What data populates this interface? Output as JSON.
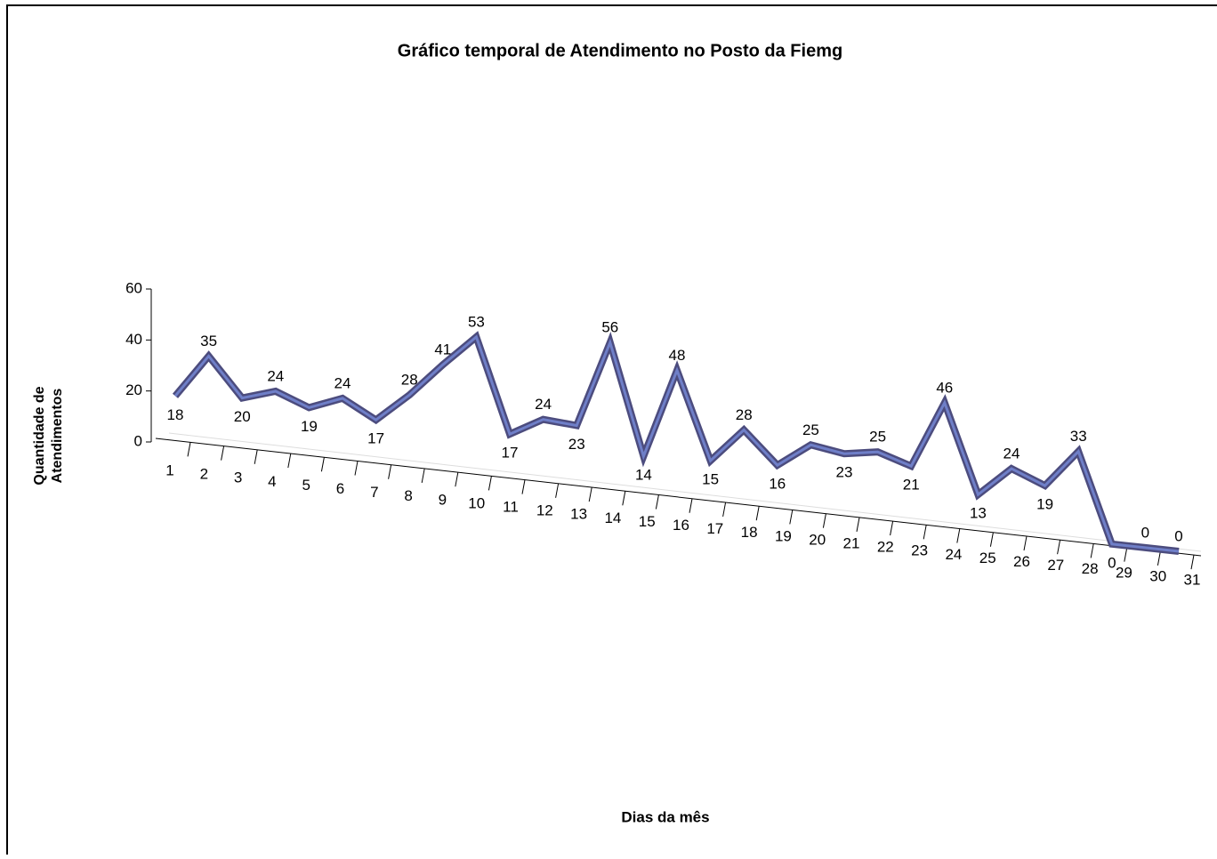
{
  "chart_data": {
    "type": "line3d",
    "title": "Gráfico temporal de Atendimento no Posto da Fiemg",
    "x_label": "Dias da mês",
    "y_label": "Quantidade de Atendimentos",
    "categories": [
      "1",
      "2",
      "3",
      "4",
      "5",
      "6",
      "7",
      "8",
      "9",
      "10",
      "11",
      "12",
      "13",
      "14",
      "15",
      "16",
      "17",
      "18",
      "19",
      "20",
      "21",
      "22",
      "23",
      "24",
      "25",
      "26",
      "27",
      "28",
      "29",
      "30",
      "31"
    ],
    "values": [
      18,
      35,
      20,
      24,
      19,
      24,
      17,
      28,
      41,
      53,
      17,
      24,
      23,
      56,
      14,
      48,
      15,
      28,
      16,
      25,
      23,
      25,
      21,
      46,
      13,
      24,
      19,
      33,
      0,
      0,
      0
    ],
    "color": "#6f7fc8",
    "ylim": [
      0,
      60
    ],
    "yticks": [
      0,
      20,
      40,
      60
    ]
  }
}
